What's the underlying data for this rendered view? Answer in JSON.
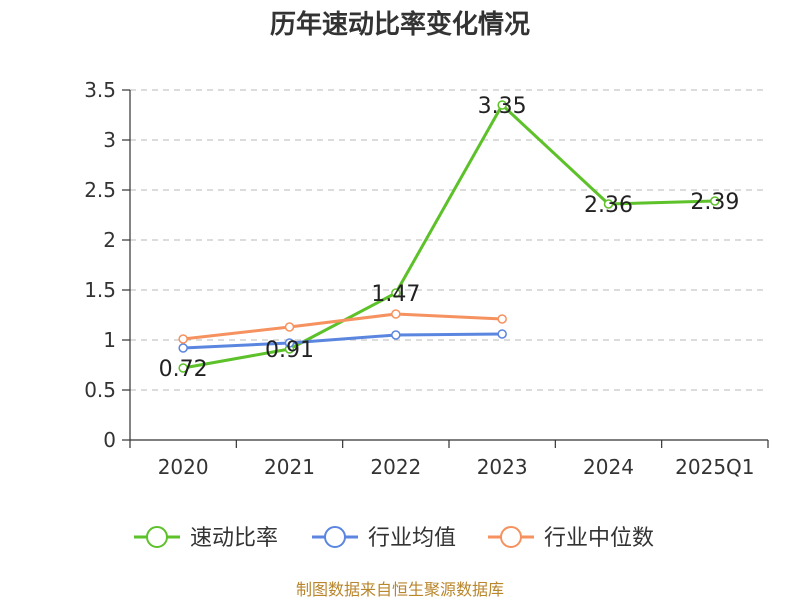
{
  "chart_data": {
    "type": "line",
    "title": "历年速动比率变化情况",
    "categories": [
      "2020",
      "2021",
      "2022",
      "2023",
      "2024",
      "2025Q1"
    ],
    "ylim": [
      0,
      3.5
    ],
    "yticks": [
      "0",
      "0.5",
      "1",
      "1.5",
      "2",
      "2.5",
      "3",
      "3.5"
    ],
    "ytick_values": [
      0,
      0.5,
      1,
      1.5,
      2,
      2.5,
      3,
      3.5
    ],
    "grid": true,
    "legend_position": "bottom",
    "series": [
      {
        "name": "速动比率",
        "color": "#5dc12a",
        "values": [
          0.72,
          0.91,
          1.47,
          3.35,
          2.36,
          2.39
        ],
        "labels": [
          "0.72",
          "0.91",
          "1.47",
          "3.35",
          "2.36",
          "2.39"
        ]
      },
      {
        "name": "行业均值",
        "color": "#5b86e0",
        "values": [
          0.92,
          0.97,
          1.05,
          1.06,
          null,
          null
        ]
      },
      {
        "name": "行业中位数",
        "color": "#f5925f",
        "values": [
          1.01,
          1.13,
          1.26,
          1.21,
          null,
          null
        ]
      }
    ]
  },
  "source": "制图数据来自恒生聚源数据库"
}
